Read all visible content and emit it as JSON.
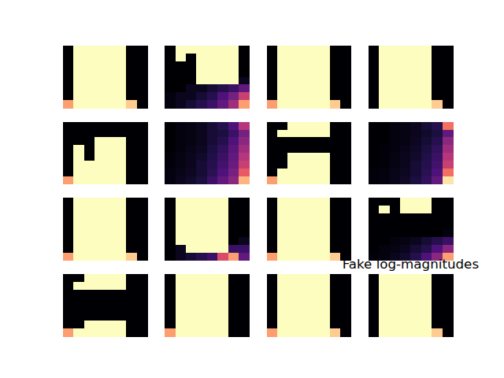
{
  "chart_data": [
    {
      "type": "heatmap",
      "tick_labels": false,
      "zlim": [
        0,
        1
      ],
      "cells": [
        [
          0,
          1,
          1,
          1,
          1,
          1,
          0,
          0
        ],
        [
          0,
          1,
          1,
          1,
          1,
          1,
          0,
          0
        ],
        [
          0,
          1,
          1,
          1,
          1,
          1,
          0,
          0
        ],
        [
          0,
          1,
          1,
          1,
          1,
          1,
          0,
          0
        ],
        [
          0,
          1,
          1,
          1,
          1,
          1,
          0,
          0
        ],
        [
          0,
          1,
          1,
          1,
          1,
          1,
          0,
          0
        ],
        [
          0,
          1,
          1,
          1,
          1,
          1,
          0,
          0
        ],
        [
          0.8,
          1,
          1,
          1,
          1,
          1,
          0.9,
          0
        ]
      ]
    },
    {
      "type": "heatmap",
      "tick_labels": false,
      "zlim": [
        0,
        1
      ],
      "cells": [
        [
          0,
          1,
          1,
          1,
          1,
          1,
          1,
          0
        ],
        [
          0,
          1,
          0,
          1,
          1,
          1,
          1,
          0
        ],
        [
          0,
          0,
          0,
          1,
          1,
          1,
          1,
          0
        ],
        [
          0,
          0,
          0,
          1,
          1,
          1,
          1,
          0
        ],
        [
          0,
          0,
          0,
          1,
          1,
          1,
          1,
          0.05
        ],
        [
          0,
          0,
          0.05,
          0.05,
          0.1,
          0.15,
          0.2,
          0.3
        ],
        [
          0.02,
          0.05,
          0.05,
          0.1,
          0.15,
          0.25,
          0.35,
          0.55
        ],
        [
          0.02,
          0.05,
          0.1,
          0.15,
          0.2,
          0.3,
          0.45,
          0.8
        ]
      ]
    },
    {
      "type": "heatmap",
      "tick_labels": false,
      "zlim": [
        0,
        1
      ],
      "cells": [
        [
          0,
          1,
          1,
          1,
          1,
          1,
          0,
          0
        ],
        [
          0,
          1,
          1,
          1,
          1,
          1,
          0,
          0
        ],
        [
          0,
          1,
          1,
          1,
          1,
          1,
          0,
          0
        ],
        [
          0,
          1,
          1,
          1,
          1,
          1,
          0,
          0
        ],
        [
          0,
          1,
          1,
          1,
          1,
          1,
          0,
          0
        ],
        [
          0,
          1,
          1,
          1,
          1,
          1,
          0,
          0
        ],
        [
          0,
          1,
          1,
          1,
          1,
          1,
          0,
          0
        ],
        [
          0.8,
          1,
          1,
          1,
          1,
          1,
          0.9,
          0
        ]
      ]
    },
    {
      "type": "heatmap",
      "tick_labels": false,
      "zlim": [
        0,
        1
      ],
      "cells": [
        [
          0,
          1,
          1,
          1,
          1,
          1,
          0,
          0
        ],
        [
          0,
          1,
          1,
          1,
          1,
          1,
          0,
          0
        ],
        [
          0,
          1,
          1,
          1,
          1,
          1,
          0,
          0
        ],
        [
          0,
          1,
          1,
          1,
          1,
          1,
          0,
          0
        ],
        [
          0,
          1,
          1,
          1,
          1,
          1,
          0,
          0
        ],
        [
          0,
          1,
          1,
          1,
          1,
          1,
          0,
          0
        ],
        [
          0,
          1,
          1,
          1,
          1,
          1,
          0,
          0
        ],
        [
          0,
          1,
          1,
          1,
          1,
          1,
          0.9,
          0
        ]
      ]
    },
    {
      "type": "heatmap",
      "tick_labels": false,
      "zlim": [
        0,
        1
      ],
      "cells": [
        [
          0,
          0,
          0,
          0,
          0,
          0,
          0,
          0
        ],
        [
          0,
          0,
          0,
          0,
          0,
          0,
          0,
          0
        ],
        [
          0,
          0,
          0,
          1,
          1,
          1,
          0,
          0
        ],
        [
          0,
          1,
          0,
          1,
          1,
          1,
          0,
          0
        ],
        [
          0,
          1,
          0,
          1,
          1,
          1,
          0,
          0
        ],
        [
          0,
          1,
          1,
          1,
          1,
          1,
          0,
          0
        ],
        [
          0,
          1,
          1,
          1,
          1,
          1,
          0,
          0
        ],
        [
          0.8,
          1,
          1,
          1,
          1,
          1,
          0,
          0
        ]
      ]
    },
    {
      "type": "heatmap",
      "tick_labels": false,
      "zlim": [
        0,
        1
      ],
      "cells": [
        [
          0,
          0.02,
          0.03,
          0.05,
          0.1,
          0.15,
          0.25,
          0.5
        ],
        [
          0,
          0.02,
          0.03,
          0.05,
          0.1,
          0.12,
          0.2,
          0.35
        ],
        [
          0,
          0.02,
          0.03,
          0.05,
          0.1,
          0.15,
          0.25,
          0.4
        ],
        [
          0,
          0.02,
          0.04,
          0.06,
          0.12,
          0.18,
          0.28,
          0.45
        ],
        [
          0.01,
          0.03,
          0.05,
          0.08,
          0.14,
          0.2,
          0.3,
          0.5
        ],
        [
          0.01,
          0.03,
          0.05,
          0.1,
          0.15,
          0.22,
          0.32,
          0.55
        ],
        [
          0.02,
          0.04,
          0.06,
          0.1,
          0.16,
          0.25,
          0.35,
          0.65
        ],
        [
          0.02,
          0.05,
          0.08,
          0.12,
          0.2,
          0.3,
          0.4,
          0.85
        ]
      ]
    },
    {
      "type": "heatmap",
      "tick_labels": false,
      "zlim": [
        0,
        1
      ],
      "cells": [
        [
          0,
          0,
          1,
          1,
          1,
          1,
          0,
          0
        ],
        [
          0,
          1,
          1,
          1,
          1,
          1,
          0,
          0
        ],
        [
          0,
          0,
          0,
          0,
          0,
          0,
          0,
          0
        ],
        [
          0,
          0,
          0,
          0,
          0,
          0,
          0,
          0
        ],
        [
          0,
          0,
          1,
          1,
          1,
          1,
          0,
          0
        ],
        [
          0,
          0,
          1,
          1,
          1,
          1,
          0,
          0
        ],
        [
          0,
          1,
          1,
          1,
          1,
          1,
          0,
          0
        ],
        [
          0.8,
          1,
          1,
          1,
          1,
          1,
          0,
          0
        ]
      ]
    },
    {
      "type": "heatmap",
      "tick_labels": false,
      "zlim": [
        0,
        1
      ],
      "cells": [
        [
          0,
          0,
          0.02,
          0.03,
          0.05,
          0.1,
          0.15,
          0.7
        ],
        [
          0,
          0,
          0.02,
          0.03,
          0.05,
          0.08,
          0.12,
          0.3
        ],
        [
          0,
          0,
          0.02,
          0.03,
          0.06,
          0.1,
          0.15,
          0.4
        ],
        [
          0,
          0.01,
          0.02,
          0.04,
          0.07,
          0.12,
          0.18,
          0.45
        ],
        [
          0,
          0.01,
          0.03,
          0.05,
          0.08,
          0.14,
          0.2,
          0.5
        ],
        [
          0,
          0.01,
          0.03,
          0.05,
          0.1,
          0.15,
          0.22,
          0.55
        ],
        [
          0.01,
          0.02,
          0.04,
          0.06,
          0.1,
          0.16,
          0.25,
          0.7
        ],
        [
          0.01,
          0.02,
          0.04,
          0.07,
          0.12,
          0.18,
          0.3,
          0.95
        ]
      ]
    },
    {
      "type": "heatmap",
      "tick_labels": false,
      "zlim": [
        0,
        1
      ],
      "cells": [
        [
          0,
          1,
          1,
          1,
          1,
          1,
          0,
          0
        ],
        [
          0,
          1,
          1,
          1,
          1,
          1,
          0,
          0
        ],
        [
          0,
          1,
          1,
          1,
          1,
          1,
          0,
          0
        ],
        [
          0,
          1,
          1,
          1,
          1,
          1,
          0,
          0
        ],
        [
          0,
          1,
          1,
          1,
          1,
          1,
          0,
          0
        ],
        [
          0,
          1,
          1,
          1,
          1,
          1,
          0,
          0
        ],
        [
          0,
          1,
          1,
          1,
          1,
          1,
          0,
          0
        ],
        [
          0.8,
          1,
          1,
          1,
          1,
          1,
          0.9,
          0
        ]
      ]
    },
    {
      "type": "heatmap",
      "tick_labels": false,
      "zlim": [
        0,
        1
      ],
      "cells": [
        [
          0,
          1,
          1,
          1,
          1,
          1,
          0,
          0
        ],
        [
          0,
          1,
          1,
          1,
          1,
          1,
          0,
          0
        ],
        [
          0,
          1,
          1,
          1,
          1,
          1,
          0,
          0
        ],
        [
          0,
          1,
          1,
          1,
          1,
          1,
          0,
          0
        ],
        [
          0,
          1,
          1,
          1,
          1,
          1,
          0,
          0
        ],
        [
          0,
          1,
          1,
          1,
          1,
          1,
          0,
          0.05
        ],
        [
          0,
          0.05,
          1,
          1,
          1,
          1,
          0.2,
          0.2
        ],
        [
          0,
          0.05,
          0.1,
          0.15,
          0.2,
          0.6,
          0.8,
          0.3
        ]
      ]
    },
    {
      "type": "heatmap",
      "tick_labels": false,
      "zlim": [
        0,
        1
      ],
      "cells": [
        [
          0,
          1,
          1,
          1,
          1,
          1,
          0,
          0
        ],
        [
          0,
          1,
          1,
          1,
          1,
          1,
          0,
          0
        ],
        [
          0,
          1,
          1,
          1,
          1,
          1,
          0,
          0
        ],
        [
          0,
          1,
          1,
          1,
          1,
          1,
          0,
          0
        ],
        [
          0,
          1,
          1,
          1,
          1,
          1,
          0,
          0
        ],
        [
          0,
          1,
          1,
          1,
          1,
          1,
          0,
          0
        ],
        [
          0,
          1,
          1,
          1,
          1,
          1,
          0,
          0
        ],
        [
          0.8,
          1,
          1,
          1,
          1,
          1,
          0.9,
          0
        ]
      ]
    },
    {
      "type": "heatmap",
      "tick_labels": false,
      "zlim": [
        0,
        1
      ],
      "cells": [
        [
          0,
          0,
          0,
          1,
          1,
          1,
          0,
          0
        ],
        [
          0,
          1,
          0,
          1,
          1,
          1,
          0,
          0
        ],
        [
          0,
          0,
          0,
          0,
          0,
          0,
          0,
          0
        ],
        [
          0,
          0,
          0,
          0,
          0,
          0,
          0,
          0
        ],
        [
          0,
          0,
          0,
          0,
          0,
          0,
          0,
          0.02
        ],
        [
          0,
          0,
          0.02,
          0.03,
          0.05,
          0.1,
          0.15,
          0.2
        ],
        [
          0,
          0.02,
          0.03,
          0.05,
          0.1,
          0.15,
          0.25,
          0.4
        ],
        [
          0.01,
          0.02,
          0.05,
          0.08,
          0.15,
          0.25,
          0.4,
          0.8
        ]
      ]
    },
    {
      "type": "heatmap",
      "tick_labels": false,
      "zlim": [
        0,
        1
      ],
      "cells": [
        [
          0,
          0,
          1,
          1,
          1,
          1,
          0,
          0
        ],
        [
          0,
          1,
          1,
          1,
          1,
          1,
          0,
          0
        ],
        [
          0,
          0,
          0,
          0,
          0,
          0,
          0,
          0
        ],
        [
          0,
          0,
          0,
          0,
          0,
          0,
          0,
          0
        ],
        [
          0,
          0,
          0,
          0,
          0,
          0,
          0,
          0
        ],
        [
          0,
          0,
          0,
          0,
          0,
          0,
          0,
          0
        ],
        [
          0,
          0,
          1,
          1,
          1,
          1,
          0,
          0
        ],
        [
          0.8,
          1,
          1,
          1,
          1,
          1,
          0,
          0
        ]
      ]
    },
    {
      "type": "heatmap",
      "tick_labels": false,
      "zlim": [
        0,
        1
      ],
      "cells": [
        [
          0,
          1,
          1,
          1,
          1,
          1,
          0,
          0
        ],
        [
          0,
          1,
          1,
          1,
          1,
          1,
          0,
          0
        ],
        [
          0,
          1,
          1,
          1,
          1,
          1,
          0,
          0
        ],
        [
          0,
          1,
          1,
          1,
          1,
          1,
          0,
          0
        ],
        [
          0,
          1,
          1,
          1,
          1,
          1,
          0,
          0
        ],
        [
          0,
          1,
          1,
          1,
          1,
          1,
          0,
          0
        ],
        [
          0,
          1,
          1,
          1,
          1,
          1,
          0,
          0
        ],
        [
          0.8,
          1,
          1,
          1,
          1,
          1,
          0,
          0
        ]
      ]
    },
    {
      "type": "heatmap",
      "tick_labels": false,
      "zlim": [
        0,
        1
      ],
      "cells": [
        [
          0,
          1,
          1,
          1,
          1,
          1,
          0,
          0
        ],
        [
          0,
          1,
          1,
          1,
          1,
          1,
          0,
          0
        ],
        [
          0,
          1,
          1,
          1,
          1,
          1,
          0,
          0
        ],
        [
          0,
          1,
          1,
          1,
          1,
          1,
          0,
          0
        ],
        [
          0,
          1,
          1,
          1,
          1,
          1,
          0,
          0
        ],
        [
          0,
          1,
          1,
          1,
          1,
          1,
          0,
          0
        ],
        [
          0,
          1,
          1,
          1,
          1,
          1,
          0,
          0
        ],
        [
          0.8,
          1,
          1,
          1,
          1,
          1,
          0.9,
          0
        ]
      ]
    },
    {
      "type": "heatmap",
      "tick_labels": false,
      "zlim": [
        0,
        1
      ],
      "title": "Fake log-magnitudes",
      "cells": [
        [
          0,
          1,
          1,
          1,
          1,
          1,
          0,
          0
        ],
        [
          0,
          1,
          1,
          1,
          1,
          1,
          0,
          0
        ],
        [
          0,
          1,
          1,
          1,
          1,
          1,
          0,
          0
        ],
        [
          0,
          1,
          1,
          1,
          1,
          1,
          0,
          0
        ],
        [
          0,
          1,
          1,
          1,
          1,
          1,
          0,
          0
        ],
        [
          0,
          1,
          1,
          1,
          1,
          1,
          0,
          0
        ],
        [
          0,
          1,
          1,
          1,
          1,
          1,
          0,
          0
        ],
        [
          0,
          1,
          1,
          1,
          1,
          1,
          0.9,
          0
        ]
      ]
    }
  ]
}
